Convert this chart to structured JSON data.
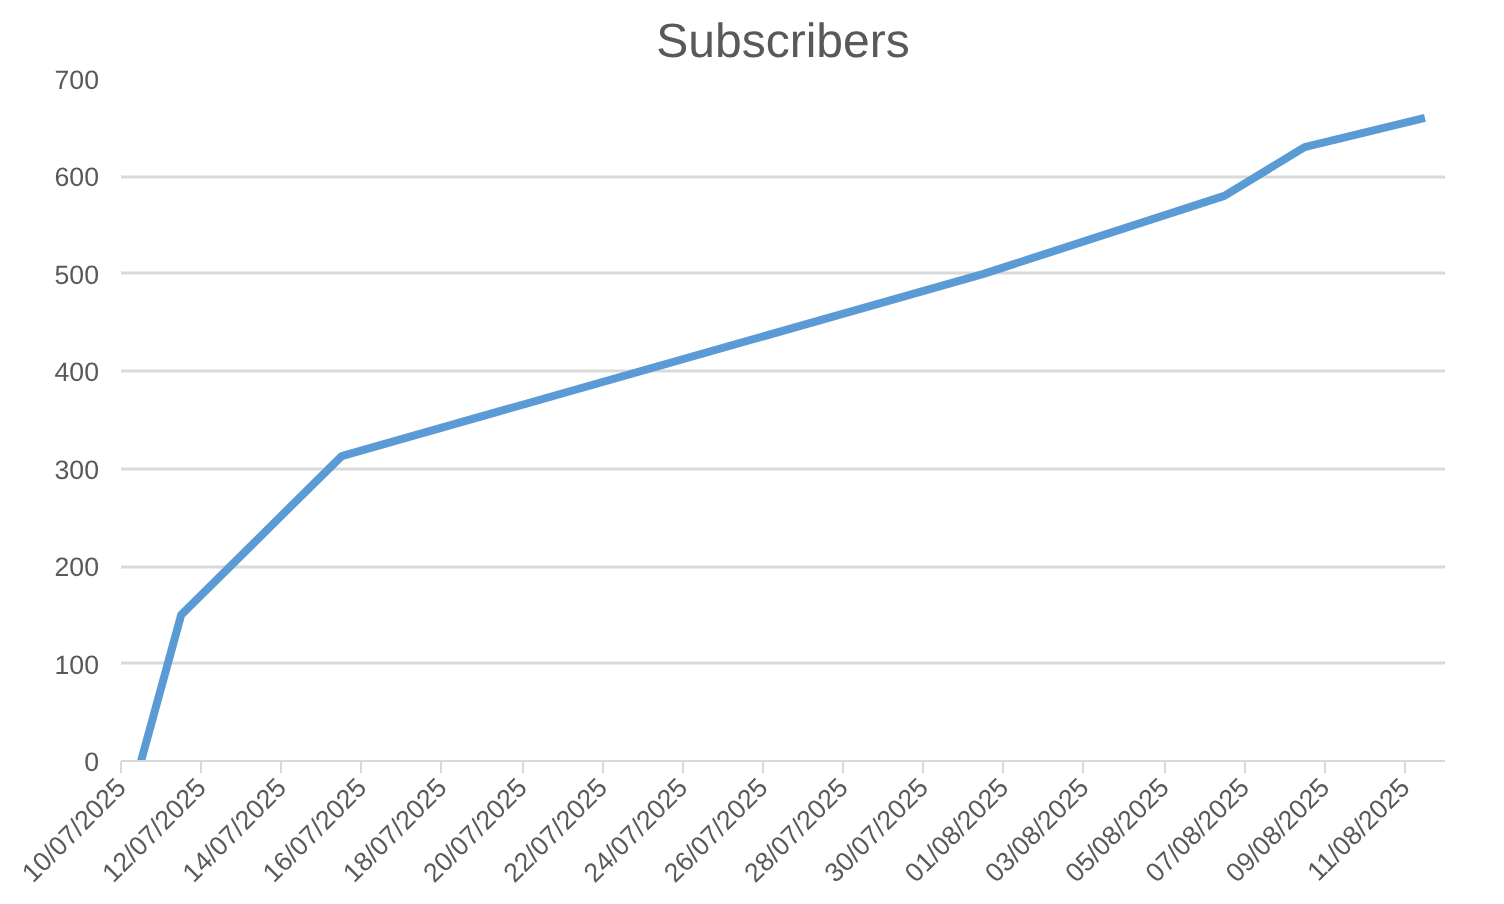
{
  "chart_data": {
    "type": "line",
    "title": "Subscribers",
    "x": [
      "2025-07-10T12:00",
      "2025-07-11T12:00",
      "2025-07-15T12:00",
      "2025-07-31T12:00",
      "2025-08-06T12:00",
      "2025-08-08T12:00",
      "2025-08-11T12:00"
    ],
    "series": [
      {
        "color": "#5b9bd5",
        "values": [
          0,
          150,
          313,
          500,
          580,
          630,
          660
        ]
      }
    ],
    "xlim": [
      "2025-07-10",
      "2025-08-12"
    ],
    "xticks": [
      {
        "value": "2025-07-10",
        "label": "10/07/2025"
      },
      {
        "value": "2025-07-12",
        "label": "12/07/2025"
      },
      {
        "value": "2025-07-14",
        "label": "14/07/2025"
      },
      {
        "value": "2025-07-16",
        "label": "16/07/2025"
      },
      {
        "value": "2025-07-18",
        "label": "18/07/2025"
      },
      {
        "value": "2025-07-20",
        "label": "20/07/2025"
      },
      {
        "value": "2025-07-22",
        "label": "22/07/2025"
      },
      {
        "value": "2025-07-24",
        "label": "24/07/2025"
      },
      {
        "value": "2025-07-26",
        "label": "26/07/2025"
      },
      {
        "value": "2025-07-28",
        "label": "28/07/2025"
      },
      {
        "value": "2025-07-30",
        "label": "30/07/2025"
      },
      {
        "value": "2025-08-01",
        "label": "01/08/2025"
      },
      {
        "value": "2025-08-03",
        "label": "03/08/2025"
      },
      {
        "value": "2025-08-05",
        "label": "05/08/2025"
      },
      {
        "value": "2025-08-07",
        "label": "07/08/2025"
      },
      {
        "value": "2025-08-09",
        "label": "09/08/2025"
      },
      {
        "value": "2025-08-11",
        "label": "11/08/2025"
      }
    ],
    "ylim": [
      0,
      700
    ],
    "yticks": [
      0,
      100,
      200,
      300,
      400,
      500,
      600,
      700
    ],
    "grid": "y",
    "marker": "none",
    "line_style": "solid"
  }
}
